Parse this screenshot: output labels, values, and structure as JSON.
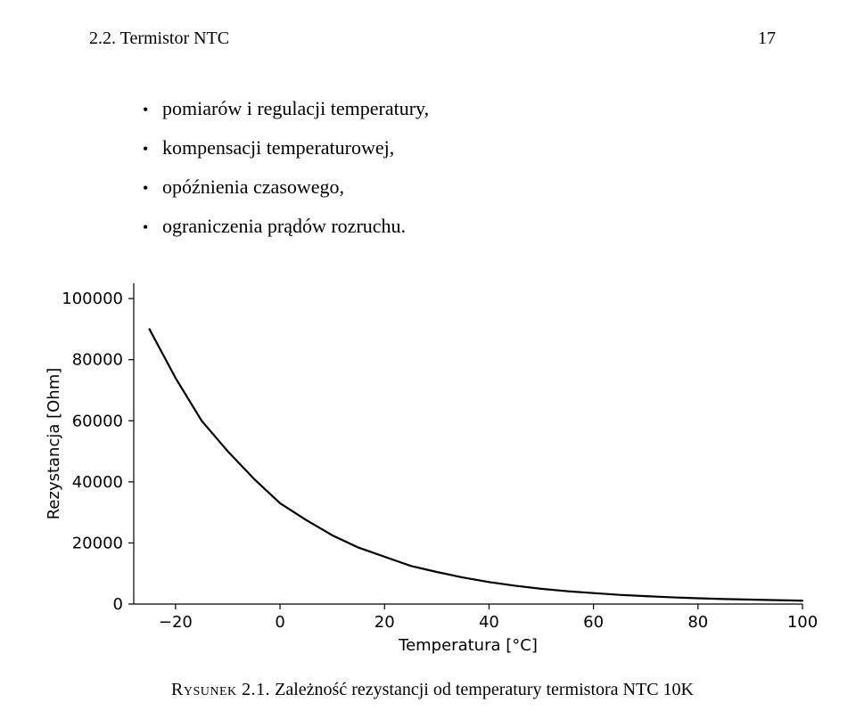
{
  "header": {
    "section_label": "2.2. Termistor NTC",
    "page_number": "17"
  },
  "bullets": [
    "pomiarów i regulacji temperatury,",
    "kompensacji temperaturowej,",
    "opóźnienia czasowego,",
    "ograniczenia prądów rozruchu."
  ],
  "chart": {
    "type": "line",
    "xlabel": "Temperatura [°C]",
    "ylabel": "Rezystancja [Ohm]",
    "xlim": [
      -28,
      100
    ],
    "ylim": [
      0,
      105000
    ],
    "xticks": [
      -20,
      0,
      20,
      40,
      60,
      80,
      100
    ],
    "yticks": [
      0,
      20000,
      40000,
      60000,
      80000,
      100000
    ],
    "line_color": "#000000",
    "line_width": 2.2,
    "axis_color": "#000000",
    "axis_width": 1.2,
    "tick_font_size": 18,
    "label_font_size": 18,
    "series": [
      {
        "x": -25,
        "y": 90000
      },
      {
        "x": -20,
        "y": 74000
      },
      {
        "x": -15,
        "y": 60000
      },
      {
        "x": -10,
        "y": 50000
      },
      {
        "x": -5,
        "y": 41000
      },
      {
        "x": 0,
        "y": 33000
      },
      {
        "x": 5,
        "y": 27500
      },
      {
        "x": 10,
        "y": 22500
      },
      {
        "x": 15,
        "y": 18500
      },
      {
        "x": 20,
        "y": 15500
      },
      {
        "x": 25,
        "y": 12500
      },
      {
        "x": 30,
        "y": 10500
      },
      {
        "x": 35,
        "y": 8700
      },
      {
        "x": 40,
        "y": 7200
      },
      {
        "x": 45,
        "y": 6000
      },
      {
        "x": 50,
        "y": 5000
      },
      {
        "x": 55,
        "y": 4200
      },
      {
        "x": 60,
        "y": 3600
      },
      {
        "x": 65,
        "y": 3000
      },
      {
        "x": 70,
        "y": 2600
      },
      {
        "x": 75,
        "y": 2200
      },
      {
        "x": 80,
        "y": 1900
      },
      {
        "x": 85,
        "y": 1650
      },
      {
        "x": 90,
        "y": 1450
      },
      {
        "x": 95,
        "y": 1270
      },
      {
        "x": 100,
        "y": 1100
      }
    ]
  },
  "caption": {
    "label": "Rysunek 2.1.",
    "text": "Zależność rezystancji od temperatury termistora NTC 10K"
  }
}
